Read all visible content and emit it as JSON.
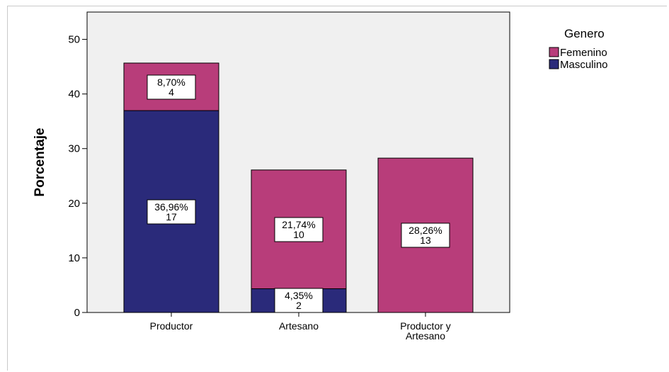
{
  "chart_data": {
    "type": "bar",
    "stacked": true,
    "ylabel": "Porcentaje",
    "xlabel": "",
    "ylim": [
      0,
      55
    ],
    "yticks": [
      0,
      10,
      20,
      30,
      40,
      50
    ],
    "categories": [
      {
        "label": "Productor",
        "lines": [
          "Productor"
        ]
      },
      {
        "label": "Artesano",
        "lines": [
          "Artesano"
        ]
      },
      {
        "label": "Productor y Artesano",
        "lines": [
          "Productor y",
          "Artesano"
        ]
      }
    ],
    "series": [
      {
        "name": "Masculino",
        "color": "#2a2a7a",
        "values": [
          36.96,
          4.35,
          0
        ],
        "labels": [
          [
            "36,96%",
            "17"
          ],
          [
            "4,35%",
            "2"
          ],
          null
        ]
      },
      {
        "name": "Femenino",
        "color": "#b83d7a",
        "values": [
          8.7,
          21.74,
          28.26
        ],
        "labels": [
          [
            "8,70%",
            "4"
          ],
          [
            "21,74%",
            "10"
          ],
          [
            "28,26%",
            "13"
          ]
        ]
      }
    ],
    "legend": {
      "title": "Genero",
      "position": "top-right",
      "order": [
        "Femenino",
        "Masculino"
      ]
    },
    "grid": false,
    "plot_background": "#f0f0f0"
  }
}
